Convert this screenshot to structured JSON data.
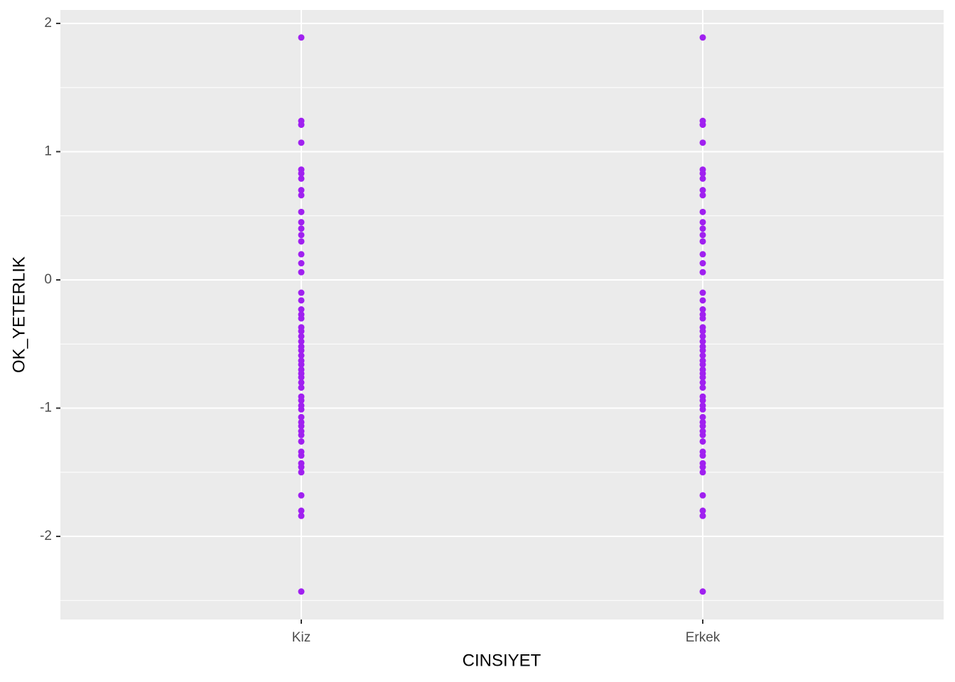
{
  "chart_data": {
    "type": "scatter",
    "x_label": "CINSIYET",
    "y_label": "OK_YETERLIK",
    "categories": [
      "Kiz",
      "Erkek"
    ],
    "color": "#a020f0",
    "values": [
      [
        1.89,
        1.24,
        1.21,
        1.07,
        0.86,
        0.83,
        0.79,
        0.7,
        0.66,
        0.53,
        0.45,
        0.4,
        0.35,
        0.3,
        0.2,
        0.13,
        0.06,
        -0.1,
        -0.16,
        -0.23,
        -0.27,
        -0.3,
        -0.37,
        -0.4,
        -0.44,
        -0.48,
        -0.52,
        -0.55,
        -0.59,
        -0.63,
        -0.66,
        -0.7,
        -0.73,
        -0.76,
        -0.8,
        -0.84,
        -0.91,
        -0.94,
        -0.98,
        -1.01,
        -1.07,
        -1.11,
        -1.14,
        -1.18,
        -1.21,
        -1.26,
        -1.34,
        -1.37,
        -1.43,
        -1.46,
        -1.5,
        -1.68,
        -1.8,
        -1.84,
        -2.43
      ],
      [
        1.89,
        1.24,
        1.21,
        1.07,
        0.86,
        0.83,
        0.79,
        0.7,
        0.66,
        0.53,
        0.45,
        0.4,
        0.35,
        0.3,
        0.2,
        0.13,
        0.06,
        -0.1,
        -0.16,
        -0.23,
        -0.27,
        -0.3,
        -0.37,
        -0.4,
        -0.44,
        -0.48,
        -0.52,
        -0.55,
        -0.59,
        -0.63,
        -0.66,
        -0.7,
        -0.73,
        -0.76,
        -0.8,
        -0.84,
        -0.91,
        -0.94,
        -0.98,
        -1.01,
        -1.07,
        -1.11,
        -1.14,
        -1.18,
        -1.21,
        -1.26,
        -1.34,
        -1.37,
        -1.43,
        -1.46,
        -1.5,
        -1.68,
        -1.8,
        -1.84,
        -2.43
      ]
    ],
    "ylim": [
      -2.648,
      2.105
    ],
    "yticks": [
      -2,
      -1,
      0,
      1,
      2
    ],
    "yminorticks": [
      -2.5,
      -1.5,
      -0.5,
      0.5,
      1.5
    ],
    "grid": true
  }
}
